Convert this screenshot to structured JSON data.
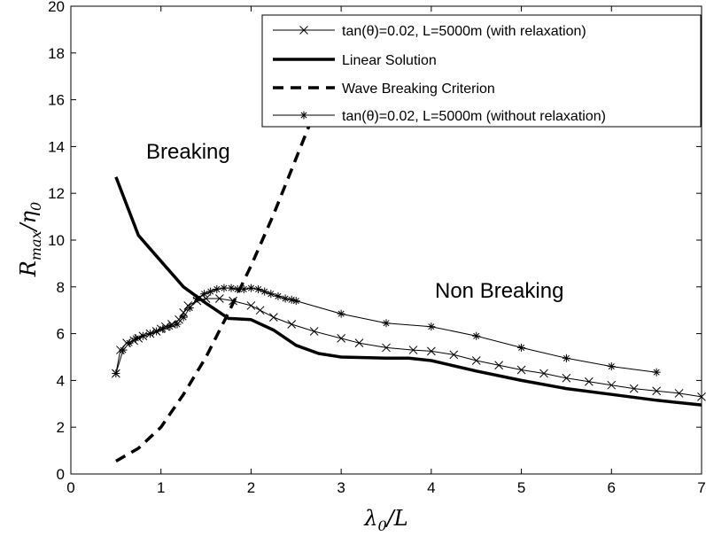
{
  "chart_data": {
    "type": "line",
    "title": "",
    "xlabel": "λ0/L",
    "ylabel": "Rmax/η0",
    "xlim": [
      0,
      7
    ],
    "ylim": [
      0,
      20
    ],
    "x_ticks": [
      "0",
      "1",
      "2",
      "3",
      "4",
      "5",
      "6",
      "7"
    ],
    "y_ticks": [
      "0",
      "2",
      "4",
      "6",
      "8",
      "10",
      "12",
      "14",
      "16",
      "18",
      "20"
    ],
    "grid": false,
    "legend_position": "top-right",
    "annotations": [
      {
        "text": "Breaking",
        "x": 1.35,
        "y": 13.5
      },
      {
        "text": "Non Breaking",
        "x": 3.75,
        "y": 7.6
      }
    ],
    "series": [
      {
        "name": "tan(θ)=0.02, L=5000m (with relaxation)",
        "line_style": "thin-solid",
        "marker": "x",
        "x": [
          0.5,
          0.55,
          0.62,
          0.7,
          0.75,
          0.8,
          0.88,
          0.95,
          1.0,
          1.05,
          1.12,
          1.2,
          1.25,
          1.3,
          1.4,
          1.5,
          1.65,
          1.8,
          2.0,
          2.1,
          2.25,
          2.45,
          2.7,
          3.0,
          3.2,
          3.5,
          3.8,
          4.0,
          4.25,
          4.5,
          4.75,
          5.0,
          5.25,
          5.5,
          5.75,
          6.0,
          6.25,
          6.5,
          6.75,
          7.0
        ],
        "y": [
          4.3,
          5.3,
          5.6,
          5.7,
          5.8,
          5.9,
          6.0,
          6.1,
          6.2,
          6.3,
          6.4,
          6.6,
          6.9,
          7.2,
          7.4,
          7.5,
          7.5,
          7.4,
          7.2,
          7.0,
          6.7,
          6.4,
          6.1,
          5.8,
          5.6,
          5.4,
          5.3,
          5.25,
          5.1,
          4.85,
          4.65,
          4.45,
          4.3,
          4.1,
          3.95,
          3.8,
          3.65,
          3.55,
          3.45,
          3.3
        ]
      },
      {
        "name": "Linear Solution",
        "line_style": "thick-solid",
        "marker": "none",
        "x": [
          0.5,
          0.75,
          1.0,
          1.25,
          1.5,
          1.75,
          2.0,
          2.25,
          2.5,
          2.75,
          3.0,
          3.5,
          3.75,
          4.0,
          4.5,
          5.0,
          5.5,
          6.0,
          6.5,
          7.0
        ],
        "y": [
          12.7,
          10.2,
          9.1,
          8.0,
          7.3,
          6.65,
          6.6,
          6.15,
          5.5,
          5.15,
          5.0,
          4.95,
          4.95,
          4.85,
          4.4,
          4.0,
          3.65,
          3.4,
          3.15,
          2.95
        ]
      },
      {
        "name": "Wave Breaking Criterion",
        "line_style": "dashed",
        "marker": "none",
        "x": [
          0.5,
          0.75,
          1.0,
          1.25,
          1.5,
          1.75,
          2.0,
          2.25,
          2.5,
          2.75,
          2.9
        ],
        "y": [
          0.55,
          1.1,
          2.0,
          3.4,
          5.0,
          6.9,
          8.9,
          11.1,
          13.5,
          15.9,
          17.4
        ]
      },
      {
        "name": "tan(θ)=0.02, L=5000m (without relaxation)",
        "line_style": "thin-solid",
        "marker": "*",
        "x": [
          0.5,
          0.58,
          0.65,
          0.72,
          0.8,
          0.88,
          0.95,
          1.02,
          1.1,
          1.18,
          1.25,
          1.32,
          1.4,
          1.48,
          1.55,
          1.62,
          1.7,
          1.78,
          1.85,
          1.92,
          2.0,
          2.08,
          2.15,
          2.22,
          2.3,
          2.38,
          2.45,
          2.5,
          3.0,
          3.5,
          4.0,
          4.5,
          5.0,
          5.5,
          6.0,
          6.5
        ],
        "y": [
          4.3,
          5.3,
          5.6,
          5.8,
          5.9,
          6.0,
          6.1,
          6.2,
          6.3,
          6.4,
          6.7,
          7.1,
          7.5,
          7.7,
          7.8,
          7.9,
          7.95,
          7.95,
          7.9,
          7.9,
          7.95,
          7.9,
          7.8,
          7.7,
          7.6,
          7.5,
          7.45,
          7.4,
          6.85,
          6.45,
          6.3,
          5.9,
          5.4,
          4.95,
          4.6,
          4.35
        ]
      }
    ]
  }
}
